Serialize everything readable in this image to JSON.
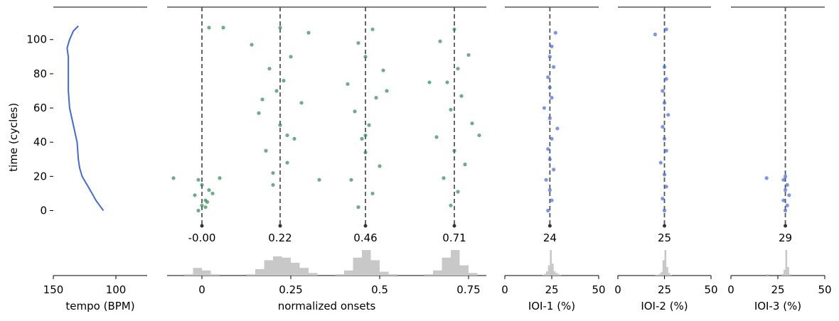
{
  "chart_data": [
    {
      "type": "line",
      "xlabel": "tempo (BPM)",
      "ylabel": "time (cycles)",
      "xlim": [
        150,
        75
      ],
      "xticks": [
        150,
        100
      ],
      "ylim": [
        -38,
        119
      ],
      "yticks": [
        0,
        20,
        40,
        60,
        80,
        100
      ],
      "series": [
        {
          "color": "#4169e1",
          "x": [
            110,
            113,
            116,
            119,
            123,
            127,
            129,
            130,
            131,
            134,
            137,
            138,
            138,
            138,
            139,
            137,
            134,
            130
          ],
          "values": [
            0,
            3,
            6,
            10,
            15,
            20,
            25,
            30,
            40,
            50,
            60,
            70,
            80,
            90,
            95,
            100,
            105,
            108
          ]
        }
      ]
    },
    {
      "type": "scatter",
      "xlabel": "normalized onsets",
      "xlim": [
        -0.098,
        0.8
      ],
      "xticks": [
        0,
        0.25,
        0.5,
        0.75
      ],
      "ylim": [
        -38,
        119
      ],
      "series": [
        {
          "color": "#2e8b57",
          "x": [
            -0.01,
            0.0,
            0.01,
            -0.02,
            0.02,
            0.0,
            -0.01,
            0.01,
            0.03,
            -0.08,
            0.05,
            0.02,
            0.06,
            0.015,
            0.2,
            0.24,
            0.18,
            0.26,
            0.22,
            0.16,
            0.28,
            0.21,
            0.23,
            0.19,
            0.25,
            0.14,
            0.3,
            0.22,
            0.2,
            0.24,
            0.33,
            0.17,
            0.44,
            0.48,
            0.42,
            0.5,
            0.46,
            0.45,
            0.47,
            0.43,
            0.49,
            0.41,
            0.51,
            0.46,
            0.44,
            0.48,
            0.46,
            0.52,
            0.7,
            0.72,
            0.68,
            0.74,
            0.71,
            0.66,
            0.76,
            0.7,
            0.73,
            0.69,
            0.72,
            0.75,
            0.67,
            0.71,
            0.78,
            0.64
          ],
          "values": [
            0,
            3,
            6,
            9,
            12,
            15,
            18,
            2,
            10,
            19,
            19,
            107,
            107,
            5,
            22,
            28,
            35,
            42,
            50,
            57,
            63,
            70,
            76,
            83,
            90,
            97,
            104,
            107,
            15,
            44,
            18,
            65,
            2,
            10,
            18,
            26,
            34,
            42,
            50,
            58,
            66,
            74,
            82,
            90,
            98,
            106,
            44,
            70,
            3,
            11,
            19,
            27,
            35,
            43,
            51,
            59,
            67,
            75,
            83,
            91,
            99,
            106,
            44,
            75
          ]
        }
      ],
      "vlines": [
        {
          "value": 0,
          "label": "-0.00"
        },
        0.22,
        0.46,
        0.71
      ],
      "hist": {
        "color": "#c8c8c8",
        "bins": [
          -0.05,
          -0.025,
          0,
          0.025,
          0.05,
          0.075,
          0.1,
          0.125,
          0.15,
          0.175,
          0.2,
          0.225,
          0.25,
          0.275,
          0.3,
          0.325,
          0.35,
          0.375,
          0.4,
          0.425,
          0.45,
          0.475,
          0.5,
          0.525,
          0.55,
          0.575,
          0.6,
          0.625,
          0.65,
          0.675,
          0.7,
          0.725,
          0.75,
          0.775,
          0.8
        ],
        "counts": [
          1,
          6,
          4,
          1,
          0,
          0,
          0,
          1,
          5,
          12,
          15,
          14,
          10,
          6,
          2,
          0,
          0,
          1,
          4,
          14,
          20,
          12,
          3,
          1,
          0,
          0,
          0,
          1,
          4,
          14,
          20,
          8,
          2,
          0
        ]
      }
    },
    {
      "type": "scatter",
      "xlabel": "IOI-1 (%)",
      "xlim": [
        0,
        50
      ],
      "xticks": [
        0,
        25,
        50
      ],
      "ylim": [
        -38,
        119
      ],
      "series": [
        {
          "color": "#4169e1",
          "x": [
            23,
            25,
            24,
            22,
            26,
            24,
            23,
            25,
            28,
            24,
            21,
            25,
            24,
            23,
            26,
            24,
            25,
            27
          ],
          "values": [
            0,
            6,
            12,
            18,
            24,
            30,
            36,
            42,
            48,
            54,
            60,
            66,
            72,
            78,
            84,
            90,
            96,
            104
          ]
        }
      ],
      "vlines": [
        24
      ],
      "hist": {
        "color": "#c8c8c8",
        "bins": [
          18,
          19,
          20,
          21,
          22,
          23,
          24,
          25,
          26,
          27,
          28,
          29,
          30,
          31,
          32
        ],
        "counts": [
          0,
          0,
          1,
          2,
          5,
          12,
          30,
          14,
          5,
          3,
          2,
          1,
          0,
          0
        ]
      }
    },
    {
      "type": "scatter",
      "xlabel": "IOI-2 (%)",
      "xlim": [
        0,
        50
      ],
      "xticks": [
        0,
        25,
        50
      ],
      "ylim": [
        -38,
        119
      ],
      "series": [
        {
          "color": "#4169e1",
          "x": [
            25,
            24,
            26,
            25,
            23,
            26,
            25,
            24,
            27,
            25,
            24,
            26,
            25,
            20,
            26
          ],
          "values": [
            0,
            7,
            14,
            21,
            28,
            35,
            42,
            49,
            56,
            63,
            70,
            77,
            84,
            103,
            106
          ]
        }
      ],
      "vlines": [
        25
      ],
      "hist": {
        "color": "#c8c8c8",
        "bins": [
          18,
          19,
          20,
          21,
          22,
          23,
          24,
          25,
          26,
          27,
          28,
          29,
          30,
          31,
          32
        ],
        "counts": [
          0,
          0,
          1,
          1,
          2,
          4,
          18,
          30,
          10,
          3,
          1,
          0,
          0,
          0
        ]
      }
    },
    {
      "type": "scatter",
      "xlabel": "IOI-3 (%)",
      "xlim": [
        0,
        50
      ],
      "xticks": [
        0,
        25,
        50
      ],
      "ylim": [
        -38,
        119
      ],
      "series": [
        {
          "color": "#4169e1",
          "x": [
            29,
            30,
            28,
            31,
            29,
            30,
            28,
            19,
            29
          ],
          "values": [
            0,
            3,
            6,
            9,
            12,
            15,
            18,
            19,
            20
          ]
        }
      ],
      "vlines": [
        29
      ],
      "hist": {
        "color": "#c8c8c8",
        "bins": [
          18,
          19,
          20,
          21,
          22,
          23,
          24,
          25,
          26,
          27,
          28,
          29,
          30,
          31,
          32
        ],
        "counts": [
          0,
          1,
          0,
          0,
          0,
          0,
          0,
          0,
          0,
          1,
          4,
          18,
          6,
          1
        ]
      }
    }
  ]
}
